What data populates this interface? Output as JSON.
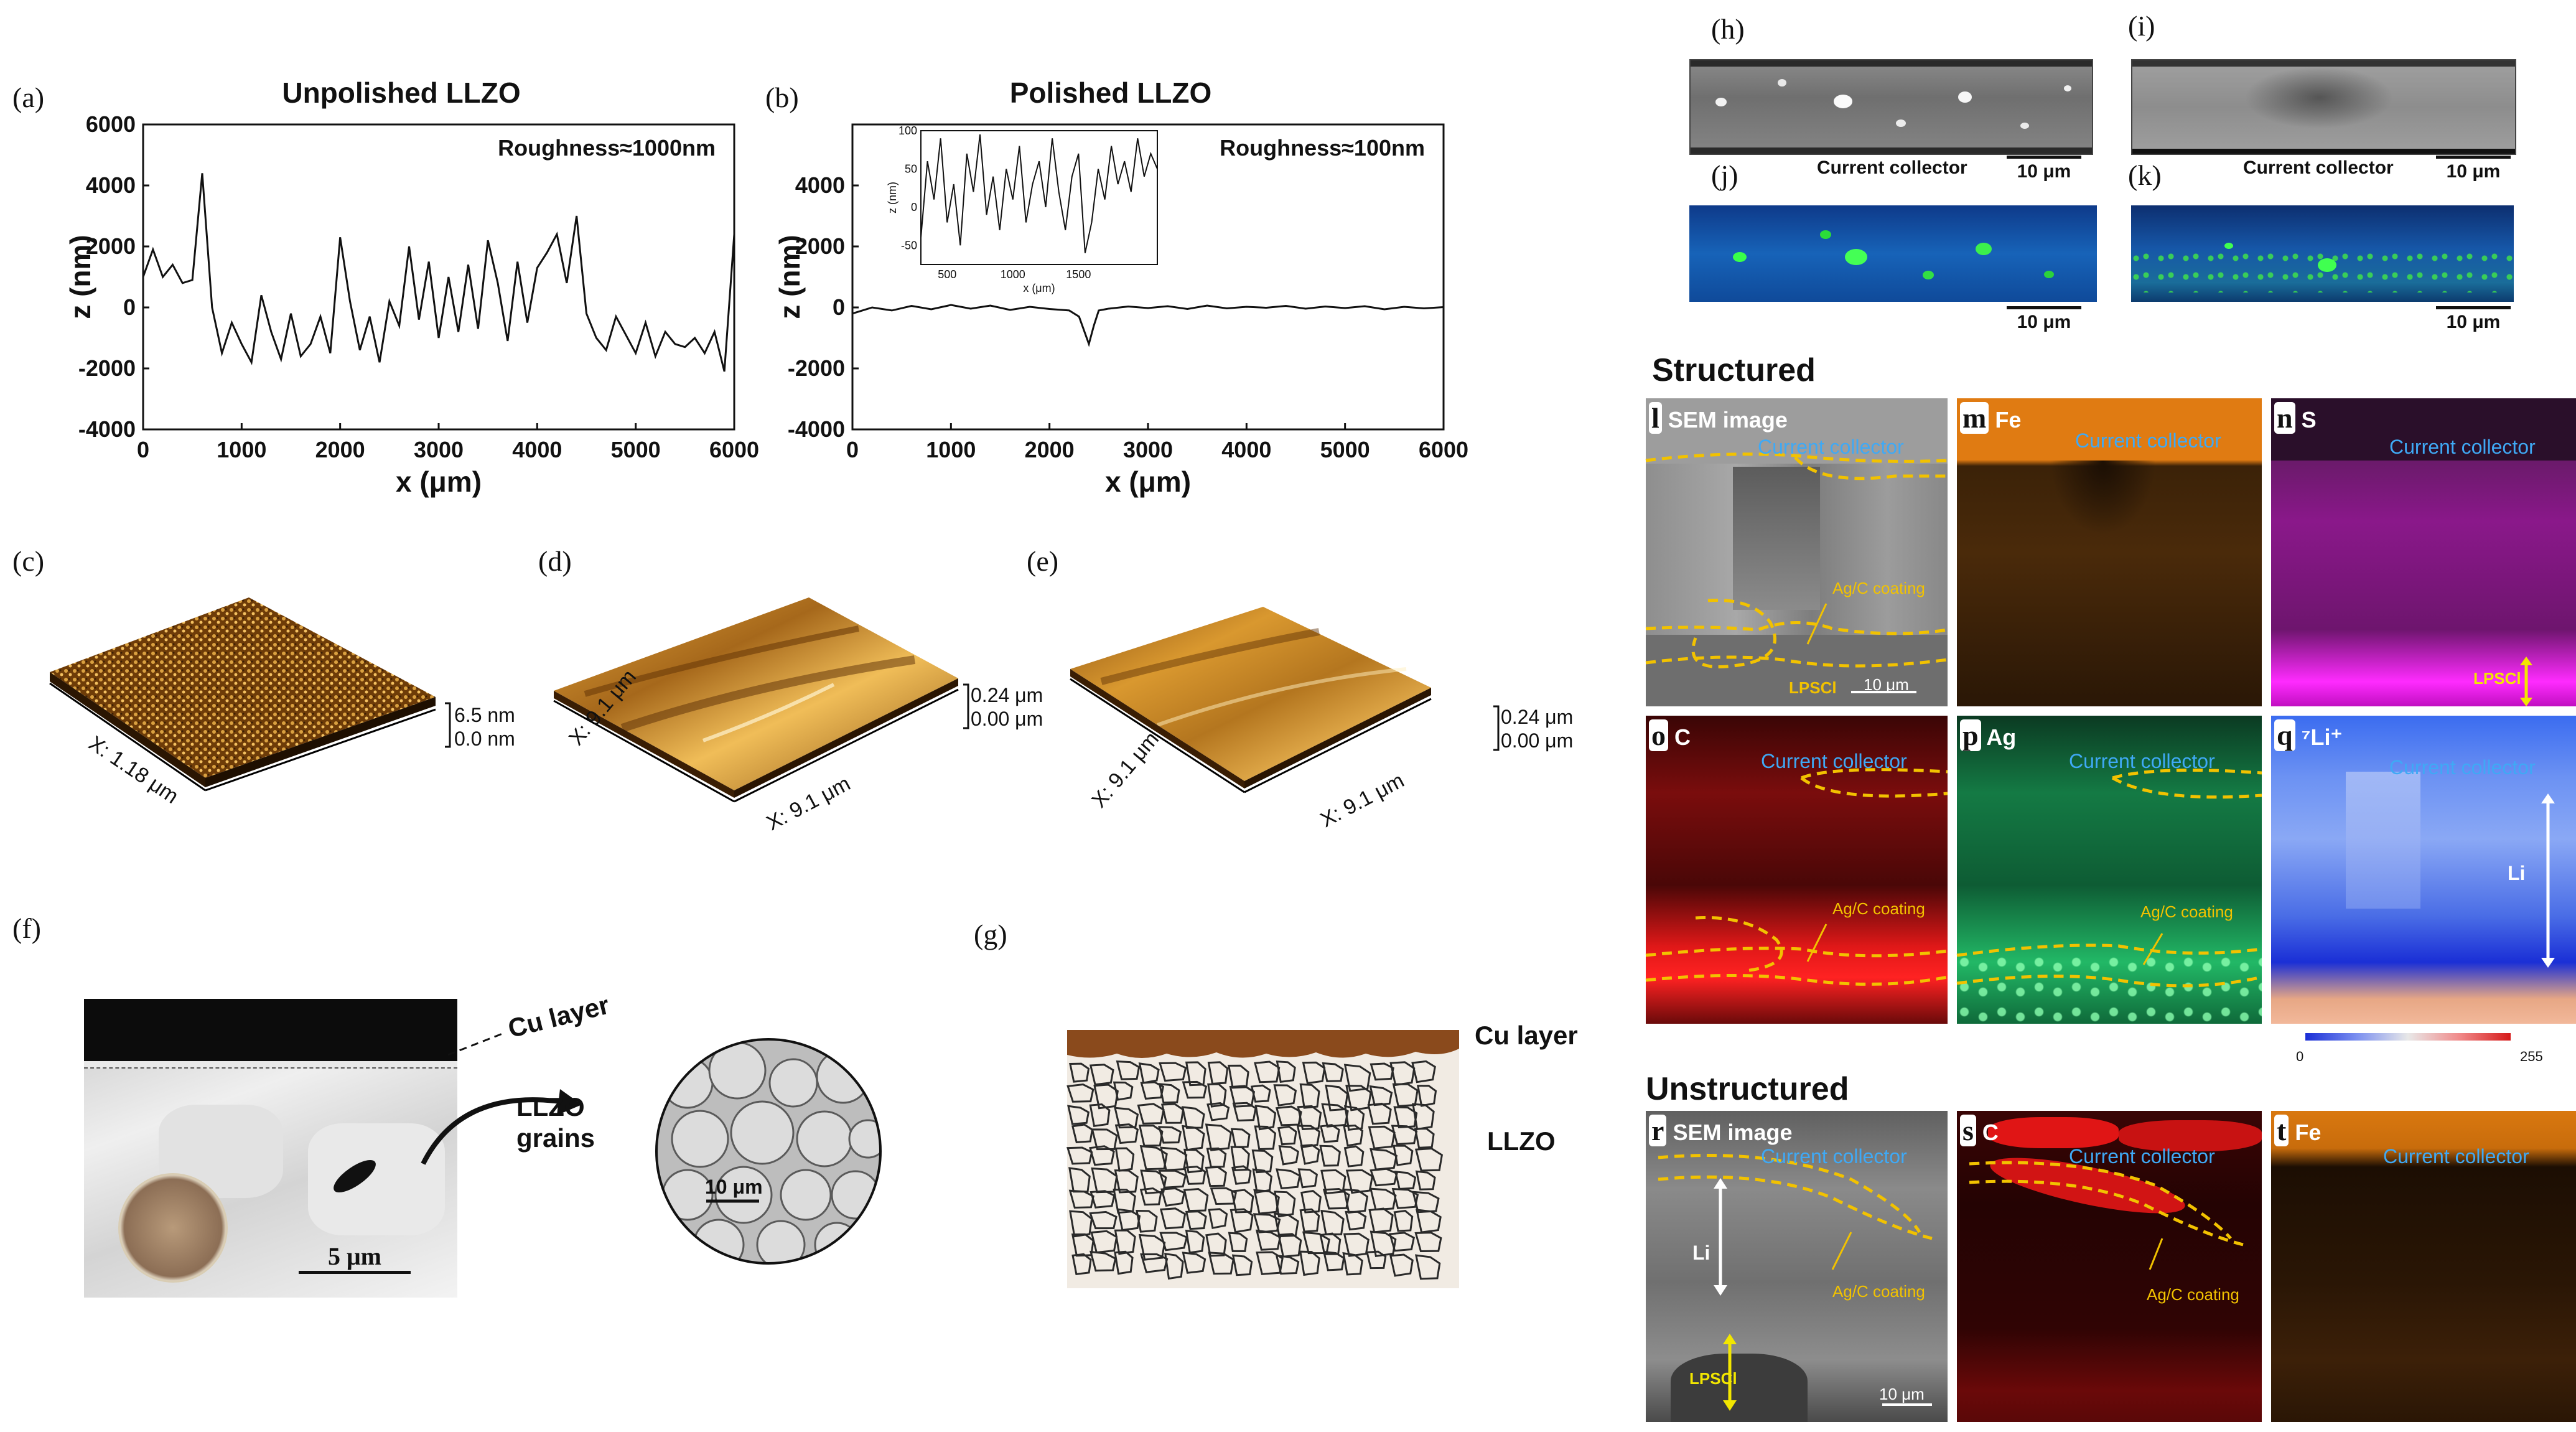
{
  "panels": {
    "a": {
      "letter": "(a)",
      "title": "Unpolished LLZO",
      "annotation": "Roughness≈1000nm",
      "xlabel": "x (μm)",
      "ylabel": "z (nm)"
    },
    "b": {
      "letter": "(b)",
      "title": "Polished LLZO",
      "annotation": "Roughness≈100nm",
      "xlabel": "x (μm)",
      "ylabel": "z (nm)"
    },
    "c": {
      "letter": "(c)",
      "axis": "X: 1.18 μm",
      "scale_top": "6.5 nm",
      "scale_bottom": "0.0 nm"
    },
    "d": {
      "letter": "(d)",
      "axis_left": "X: 9.1 μm",
      "axis_right": "X: 9.1 μm",
      "scale_top": "0.24 μm",
      "scale_bottom": "0.00 μm"
    },
    "e": {
      "letter": "(e)",
      "axis_left": "X: 9.1 μm",
      "axis_right": "X: 9.1 μm",
      "scale_top": "0.24 μm",
      "scale_bottom": "0.00 μm"
    },
    "f": {
      "letter": "(f)",
      "cu": "Cu layer",
      "grains_line1": "LLZO",
      "grains_line2": "grains",
      "scale1": "5 μm",
      "scale2": "10 μm"
    },
    "g": {
      "letter": "(g)",
      "cu": "Cu layer",
      "llzo": "LLZO"
    },
    "h": {
      "letter": "(h)",
      "label": "Current collector",
      "scale": "10 μm"
    },
    "i": {
      "letter": "(i)",
      "label": "Current collector",
      "scale": "10 μm"
    },
    "j": {
      "letter": "(j)",
      "scale": "10 μm"
    },
    "k": {
      "letter": "(k)",
      "scale": "10 μm"
    },
    "structured": "Structured",
    "unstructured": "Unstructured",
    "l": {
      "letter": "l",
      "name": "SEM image",
      "cc": "Current collector",
      "coating": "Ag/C coating",
      "lpscl": "LPSCl",
      "scale": "10 μm"
    },
    "m": {
      "letter": "m",
      "name": "Fe",
      "cc": "Current collector"
    },
    "n": {
      "letter": "n",
      "name": "S",
      "cc": "Current collector",
      "lpscl": "LPSCl"
    },
    "o": {
      "letter": "o",
      "name": "C",
      "cc": "Current collector",
      "coating": "Ag/C coating"
    },
    "p": {
      "letter": "p",
      "name": "Ag",
      "cc": "Current collector",
      "coating": "Ag/C coating"
    },
    "q": {
      "letter": "q",
      "name": "⁷Li⁺",
      "cc": "Current collector",
      "li": "Li",
      "cbar_min": "0",
      "cbar_max": "255"
    },
    "r": {
      "letter": "r",
      "name": "SEM image",
      "cc": "Current collector",
      "coating": "Ag/C coating",
      "li": "Li",
      "lpscl": "LPSCl",
      "scale": "10 μm"
    },
    "s": {
      "letter": "s",
      "name": "C",
      "cc": "Current collector",
      "coating": "Ag/C coating"
    },
    "t": {
      "letter": "t",
      "name": "Fe",
      "cc": "Current collector"
    }
  },
  "colors": {
    "cc_text": "#3fa9f5",
    "coating": "#f2c200",
    "lpscl": "#f2e600",
    "cu_brown": "#8a4a1c"
  },
  "chart_data": [
    {
      "type": "line",
      "title": "Unpolished LLZO",
      "xlabel": "x (μm)",
      "ylabel": "z (nm)",
      "xlim": [
        0,
        6000
      ],
      "ylim": [
        -4000,
        6000
      ],
      "xticks": [
        0,
        1000,
        2000,
        3000,
        4000,
        5000,
        6000
      ],
      "yticks": [
        -4000,
        -2000,
        0,
        2000,
        4000,
        6000
      ],
      "annotation": "Roughness≈1000nm",
      "x": [
        0,
        100,
        200,
        300,
        400,
        500,
        600,
        700,
        800,
        900,
        1000,
        1100,
        1200,
        1300,
        1400,
        1500,
        1600,
        1700,
        1800,
        1900,
        2000,
        2100,
        2200,
        2300,
        2400,
        2500,
        2600,
        2700,
        2800,
        2900,
        3000,
        3100,
        3200,
        3300,
        3400,
        3500,
        3600,
        3700,
        3800,
        3900,
        4000,
        4100,
        4200,
        4300,
        4400,
        4500,
        4600,
        4700,
        4800,
        4900,
        5000,
        5100,
        5200,
        5300,
        5400,
        5500,
        5600,
        5700,
        5800,
        5900,
        6000
      ],
      "y": [
        1000,
        1900,
        1000,
        1400,
        800,
        900,
        4400,
        0,
        -1500,
        -500,
        -1200,
        -1800,
        400,
        -800,
        -1700,
        -200,
        -1600,
        -1200,
        -300,
        -1500,
        2300,
        200,
        -1400,
        -300,
        -1800,
        200,
        -600,
        2000,
        -400,
        1500,
        -1000,
        1000,
        -800,
        1400,
        -700,
        2200,
        800,
        -1100,
        1500,
        -500,
        1300,
        1800,
        2400,
        800,
        3000,
        -200,
        -1000,
        -1400,
        -300,
        -900,
        -1500,
        -500,
        -1600,
        -800,
        -1200,
        -1300,
        -1000,
        -1500,
        -800,
        -2100,
        2400
      ]
    },
    {
      "type": "line",
      "title": "Polished LLZO",
      "xlabel": "x (μm)",
      "ylabel": "z (nm)",
      "xlim": [
        0,
        6000
      ],
      "ylim": [
        -4000,
        6000
      ],
      "xticks": [
        0,
        1000,
        2000,
        3000,
        4000,
        5000,
        6000
      ],
      "yticks": [
        -4000,
        -2000,
        0,
        2000,
        4000
      ],
      "annotation": "Roughness≈100nm",
      "x": [
        0,
        200,
        400,
        600,
        800,
        1000,
        1200,
        1400,
        1600,
        1800,
        2000,
        2200,
        2300,
        2400,
        2450,
        2500,
        2600,
        2800,
        3000,
        3200,
        3400,
        3600,
        3800,
        4000,
        4200,
        4400,
        4600,
        4800,
        5000,
        5200,
        5400,
        5600,
        5800,
        6000
      ],
      "y": [
        -200,
        0,
        -100,
        50,
        -60,
        80,
        -40,
        60,
        -80,
        20,
        -50,
        -100,
        -300,
        -1200,
        -600,
        -100,
        -40,
        30,
        -20,
        40,
        -50,
        60,
        -30,
        20,
        -10,
        50,
        -40,
        30,
        -20,
        40,
        -60,
        20,
        -30,
        10
      ],
      "inset": {
        "xlabel": "x (μm)",
        "ylabel": "z (nm)",
        "xlim": [
          300,
          2100
        ],
        "ylim": [
          -75,
          100
        ],
        "xticks": [
          500,
          1000,
          1500
        ],
        "yticks": [
          -50,
          0,
          50,
          100
        ],
        "x": [
          300,
          350,
          400,
          450,
          500,
          550,
          600,
          650,
          700,
          750,
          800,
          850,
          900,
          950,
          1000,
          1050,
          1100,
          1150,
          1200,
          1250,
          1300,
          1350,
          1400,
          1450,
          1500,
          1550,
          1600,
          1650,
          1700,
          1750,
          1800,
          1850,
          1900,
          1950,
          2000,
          2050,
          2100
        ],
        "y": [
          -40,
          60,
          10,
          90,
          -20,
          30,
          -50,
          70,
          20,
          95,
          -10,
          40,
          -30,
          50,
          10,
          80,
          -20,
          30,
          60,
          0,
          90,
          20,
          -30,
          40,
          70,
          -60,
          -20,
          50,
          10,
          80,
          30,
          60,
          20,
          90,
          40,
          70,
          50
        ]
      }
    }
  ]
}
